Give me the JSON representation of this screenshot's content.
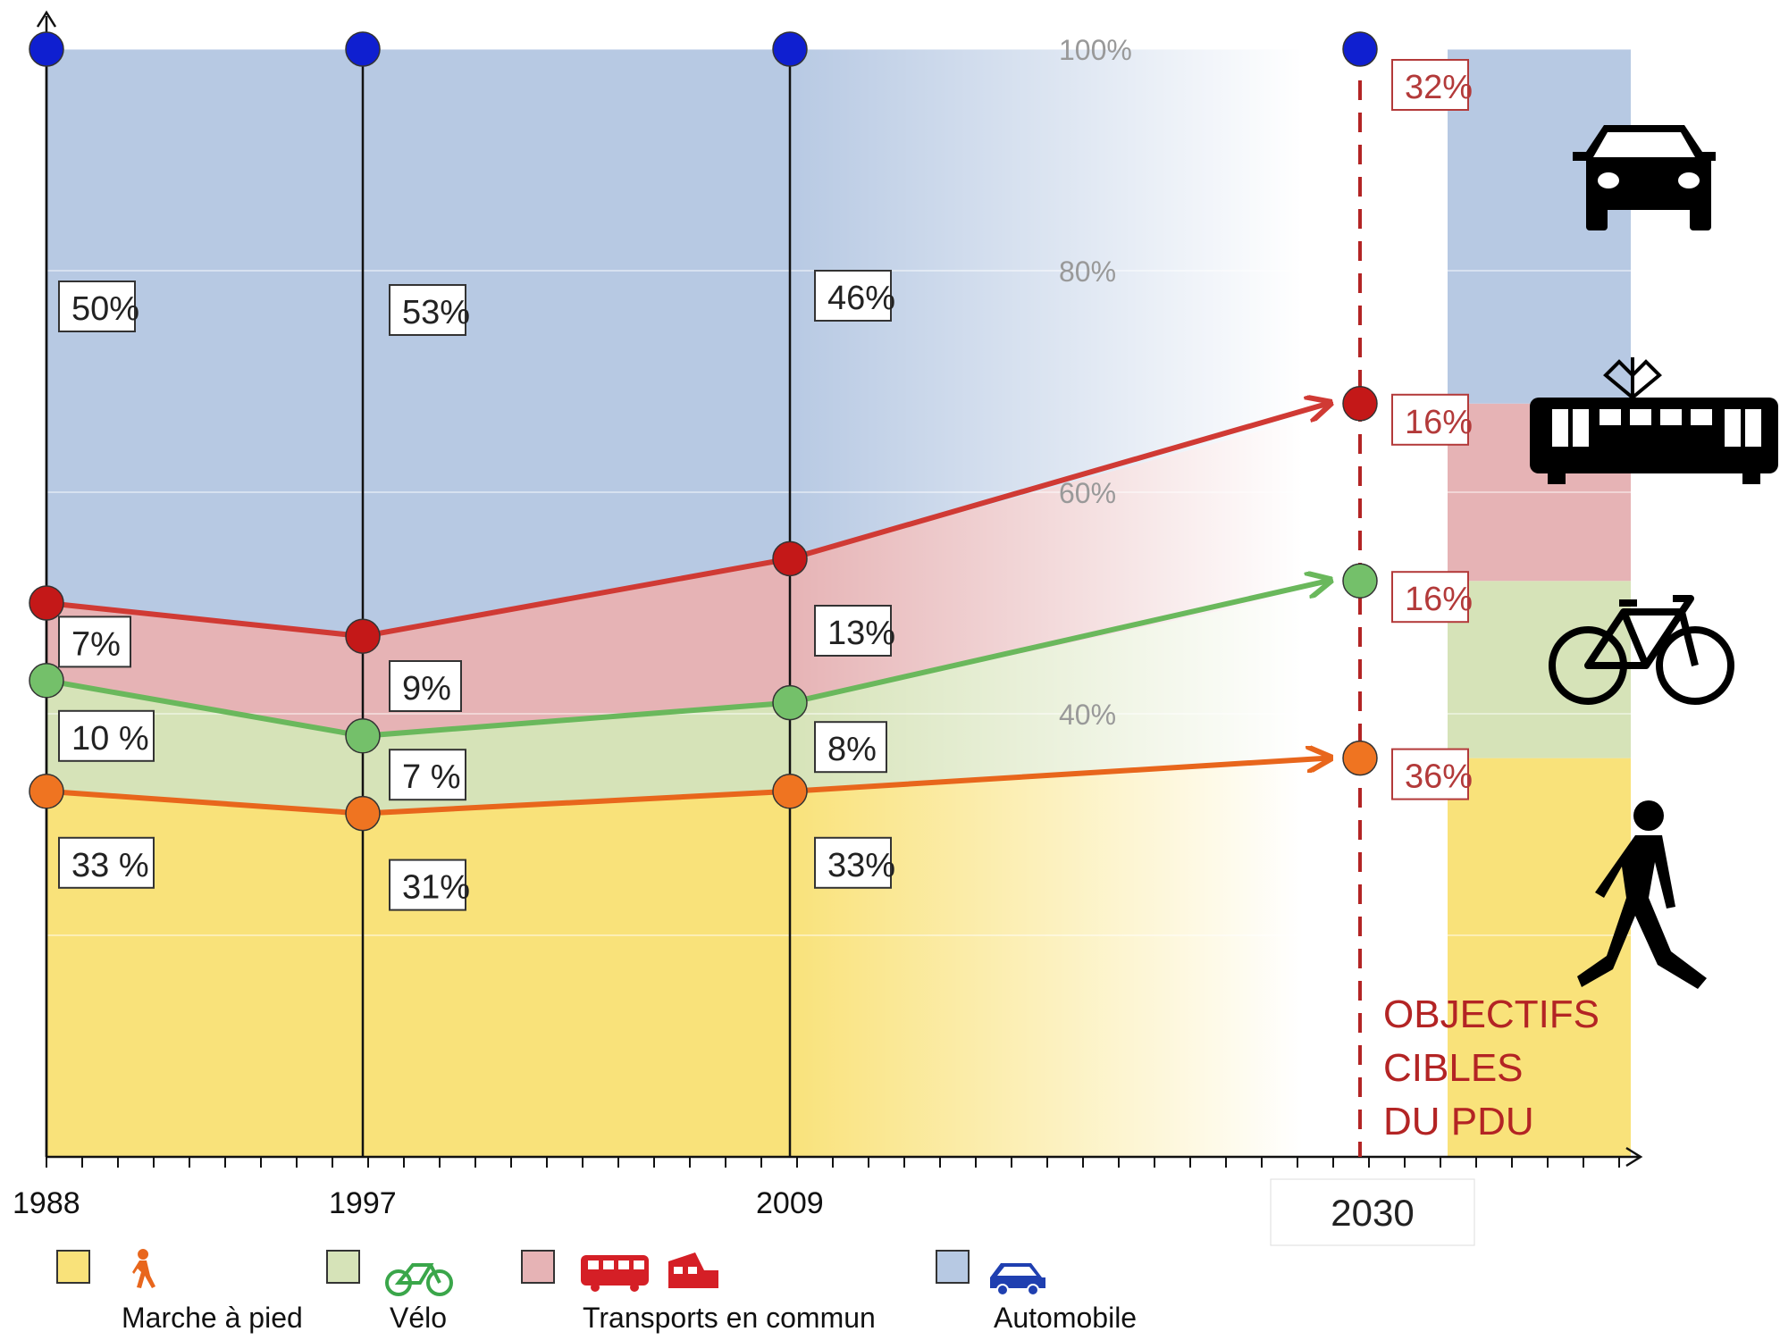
{
  "chart_data": {
    "type": "area",
    "x": [
      "1988",
      "1997",
      "2009"
    ],
    "target_year": "2030",
    "yticks": [
      "40%",
      "60%",
      "80%",
      "100%"
    ],
    "ylim": [
      0,
      100
    ],
    "series": [
      {
        "name": "Marche à pied",
        "values": [
          33,
          31,
          33
        ],
        "target": 36,
        "labels": [
          "33 %",
          "31%",
          "33%"
        ],
        "target_label": "36%",
        "fill": "#f9e27a",
        "line": "#e8661c"
      },
      {
        "name": "Vélo",
        "values": [
          10,
          7,
          8
        ],
        "target": 16,
        "labels": [
          "10 %",
          "7 %",
          "8%"
        ],
        "target_label": "16%",
        "fill": "#d6e3b8",
        "line": "#6ab85c"
      },
      {
        "name": "Transports en commun",
        "values": [
          7,
          9,
          13
        ],
        "target": 16,
        "labels": [
          "7%",
          "9%",
          "13%"
        ],
        "target_label": "16%",
        "fill": "#e6b3b5",
        "line": "#d03a34"
      },
      {
        "name": "Automobile",
        "values": [
          50,
          53,
          46
        ],
        "target": 32,
        "labels": [
          "50%",
          "53%",
          "46%"
        ],
        "target_label": "32%",
        "fill": "#b7c9e3",
        "line": "#1a1ad6"
      }
    ],
    "target_note": [
      "OBJECTIFS",
      "CIBLES",
      "DU PDU"
    ]
  },
  "colors": {
    "target": "#b32424",
    "walk_marker": "#ef7421",
    "bike_marker": "#74c06a",
    "transit_marker": "#c41818",
    "car_marker": "#0f1fd0"
  },
  "icons": [
    "car-icon",
    "tram-icon",
    "bicycle-icon",
    "pedestrian-icon"
  ]
}
